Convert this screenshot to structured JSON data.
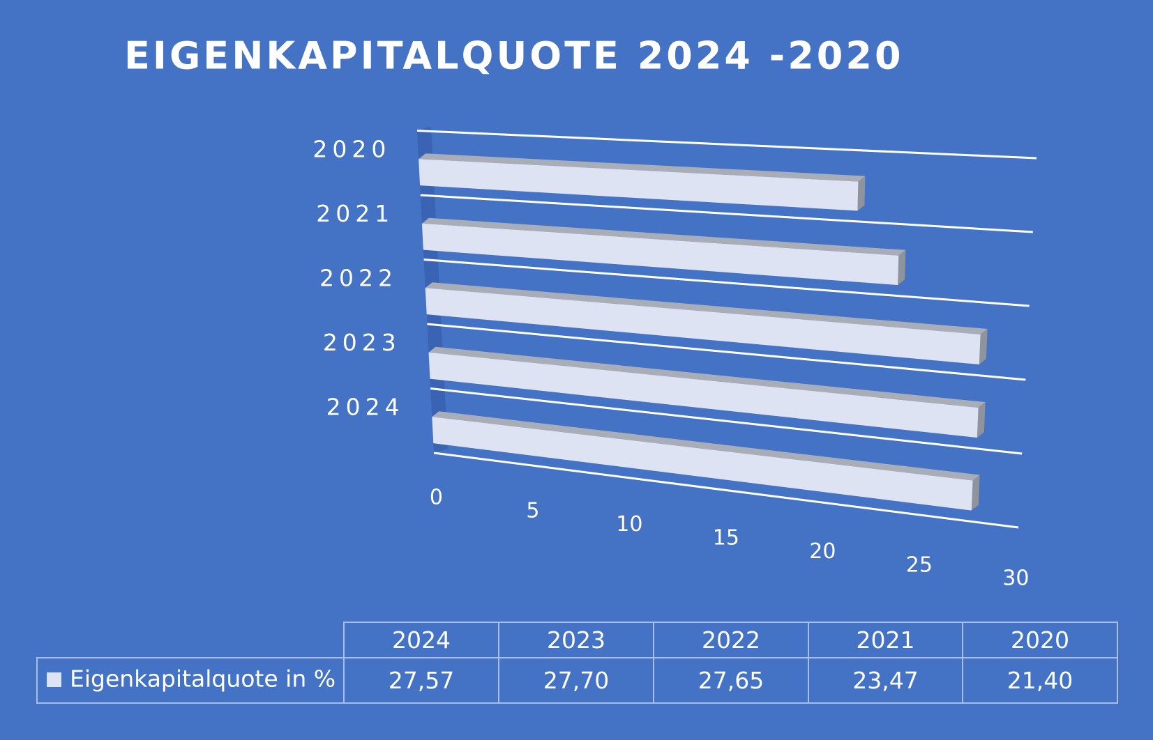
{
  "chart_data": {
    "type": "bar3d",
    "title": "EIGENKAPITALQUOTE 2024 -2020",
    "categories": [
      "2024",
      "2023",
      "2022",
      "2021",
      "2020"
    ],
    "series": [
      {
        "name": "Eigenkapitalquote in %",
        "color": "#dde3f3",
        "values": [
          27.57,
          27.7,
          27.65,
          23.47,
          21.4
        ],
        "value_labels": [
          "27,57",
          "27,70",
          "27,65",
          "23,47",
          "21,40"
        ]
      }
    ],
    "xlim": [
      0,
      30
    ],
    "xticks": [
      0,
      5,
      10,
      15,
      20,
      25,
      30
    ],
    "data_table": true
  }
}
